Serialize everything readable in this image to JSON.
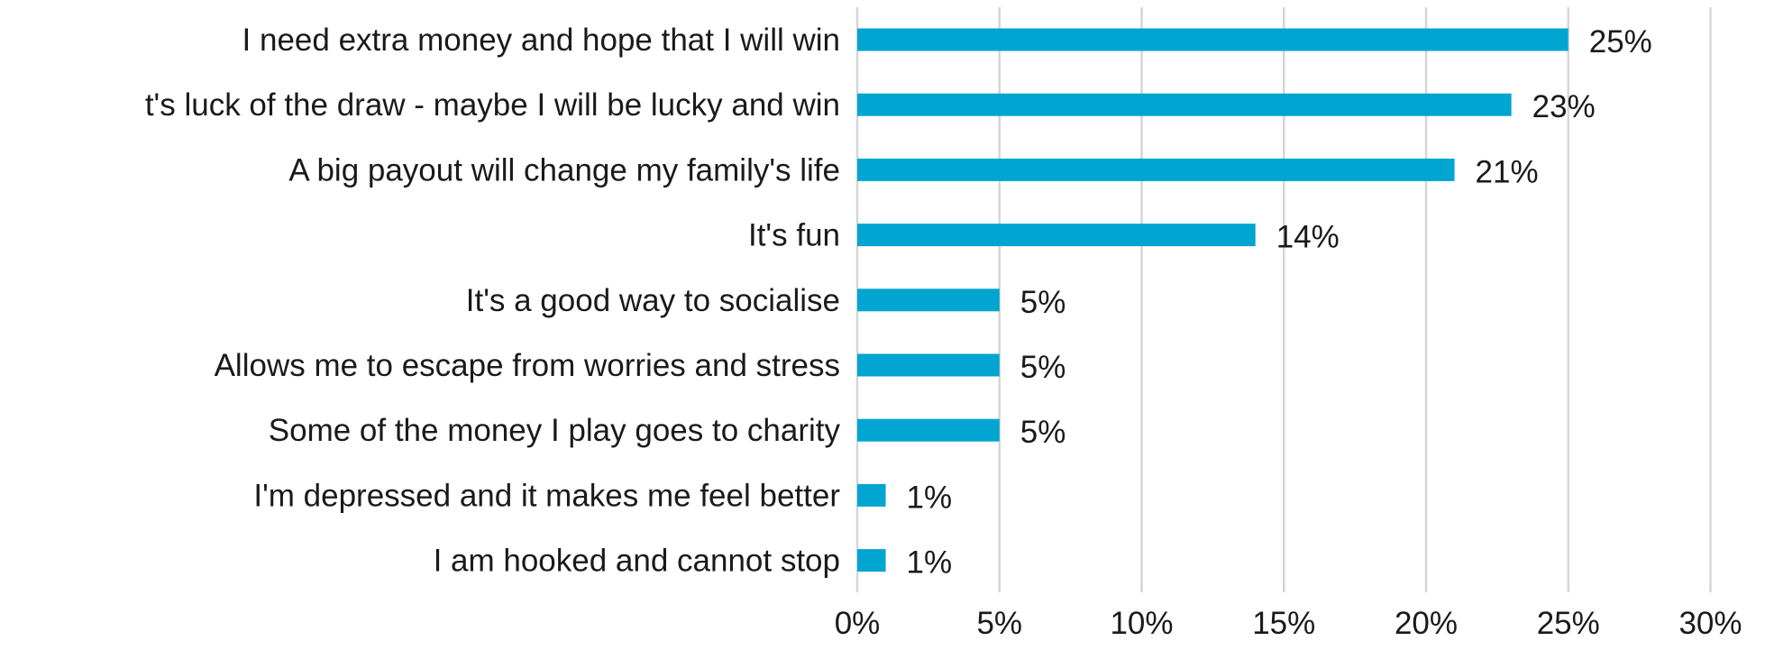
{
  "chart_data": {
    "type": "bar",
    "orientation": "horizontal",
    "categories": [
      "I need extra money and hope that I will win",
      "t's luck of the draw - maybe I will be lucky and win",
      "A big payout will change my family's life",
      "It's fun",
      "It's a good way to socialise",
      "Allows me to escape from worries and stress",
      "Some of the money I play goes to charity",
      "I'm depressed and it makes me feel better",
      "I am hooked and cannot stop"
    ],
    "values": [
      25,
      23,
      21,
      14,
      5,
      5,
      5,
      1,
      1
    ],
    "value_labels": [
      "25%",
      "23%",
      "21%",
      "14%",
      "5%",
      "5%",
      "5%",
      "1%",
      "1%"
    ],
    "xlim": [
      0,
      30
    ],
    "x_ticks": [
      0,
      5,
      10,
      15,
      20,
      25,
      30
    ],
    "x_tick_labels": [
      "0%",
      "5%",
      "10%",
      "15%",
      "20%",
      "25%",
      "30%"
    ],
    "grid": true,
    "legend": "none",
    "bar_color": "#00a5d1",
    "grid_color": "#d6d6d6"
  }
}
